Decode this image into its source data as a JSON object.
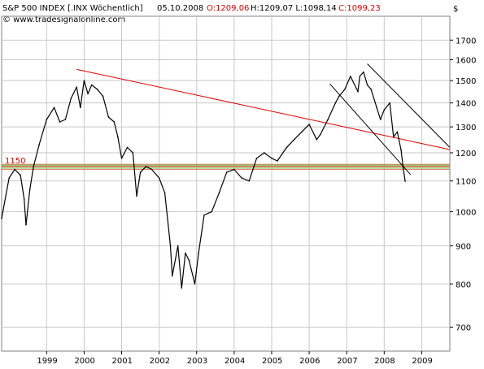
{
  "header": {
    "symbol": "S&P 500 INDEX [.INX Wöchentlich]",
    "date": "05.10.2008",
    "open_label": "O:1209,06",
    "hlc_label": "H:1209,07 L:1098,14",
    "close_label": "C:1099,23",
    "copyright": "© www.tradesignalonline.com",
    "currency": "$"
  },
  "colors": {
    "background": "#ffffff",
    "grid": "#c8c8c8",
    "price": "#000000",
    "red_line": "#e00000",
    "channel": "#000000",
    "band_green": "#7fbf5f",
    "band_red": "#e06040",
    "ohlc_red": "#d00000",
    "text": "#000000"
  },
  "chart_data": {
    "type": "line",
    "title": "",
    "xlabel": "",
    "ylabel": "$",
    "y_scale": "log",
    "ylim": [
      650,
      1830
    ],
    "xlim": [
      1998.0,
      2009.95
    ],
    "y_ticks": [
      700,
      800,
      900,
      1000,
      1100,
      1200,
      1300,
      1400,
      1500,
      1600,
      1700
    ],
    "x_ticks": [
      {
        "label": "1999",
        "value": 1999.2
      },
      {
        "label": "2000",
        "value": 2000.2
      },
      {
        "label": "2001",
        "value": 2001.2
      },
      {
        "label": "2002",
        "value": 2002.2
      },
      {
        "label": "2003",
        "value": 2003.2
      },
      {
        "label": "2004",
        "value": 2004.2
      },
      {
        "label": "2005",
        "value": 2005.2
      },
      {
        "label": "2006",
        "value": 2006.2
      },
      {
        "label": "2007",
        "value": 2007.2
      },
      {
        "label": "2008",
        "value": 2008.2
      },
      {
        "label": "2009",
        "value": 2009.2
      }
    ],
    "grid": true,
    "series": [
      {
        "x": [
          1998.0,
          1998.2,
          1998.35,
          1998.5,
          1998.6,
          1998.65,
          1998.75,
          1998.85,
          1999.0,
          1999.2,
          1999.4,
          1999.55,
          1999.7,
          1999.85,
          2000.0,
          2000.1,
          2000.2,
          2000.3,
          2000.4,
          2000.55,
          2000.7,
          2000.85,
          2001.0,
          2001.1,
          2001.2,
          2001.35,
          2001.5,
          2001.6,
          2001.7,
          2001.85,
          2002.0,
          2002.2,
          2002.35,
          2002.5,
          2002.55,
          2002.7,
          2002.8,
          2002.9,
          2003.0,
          2003.15,
          2003.25,
          2003.4,
          2003.6,
          2003.8,
          2004.0,
          2004.2,
          2004.4,
          2004.6,
          2004.8,
          2005.0,
          2005.2,
          2005.35,
          2005.6,
          2005.8,
          2006.0,
          2006.2,
          2006.4,
          2006.5,
          2006.7,
          2006.9,
          2007.0,
          2007.15,
          2007.3,
          2007.5,
          2007.55,
          2007.65,
          2007.75,
          2007.85,
          2008.0,
          2008.1,
          2008.2,
          2008.35,
          2008.45,
          2008.55,
          2008.65,
          2008.7,
          2008.76
        ],
        "values": [
          980,
          1110,
          1140,
          1120,
          1040,
          960,
          1070,
          1150,
          1230,
          1330,
          1380,
          1320,
          1330,
          1420,
          1470,
          1380,
          1500,
          1440,
          1480,
          1460,
          1430,
          1340,
          1320,
          1260,
          1180,
          1220,
          1200,
          1050,
          1130,
          1150,
          1140,
          1110,
          1060,
          900,
          820,
          900,
          790,
          880,
          860,
          800,
          880,
          990,
          1000,
          1060,
          1130,
          1140,
          1110,
          1100,
          1180,
          1200,
          1180,
          1170,
          1220,
          1250,
          1280,
          1310,
          1250,
          1270,
          1330,
          1400,
          1430,
          1460,
          1520,
          1450,
          1520,
          1540,
          1480,
          1460,
          1380,
          1330,
          1370,
          1400,
          1260,
          1280,
          1210,
          1150,
          1099
        ]
      }
    ],
    "trendline": {
      "x": [
        2000.0,
        2009.95
      ],
      "values": [
        1553,
        1212
      ]
    },
    "channel_upper": {
      "x": [
        2007.75,
        2009.95
      ],
      "values": [
        1580,
        1220
      ]
    },
    "channel_lower": {
      "x": [
        2006.75,
        2008.9
      ],
      "values": [
        1485,
        1122
      ]
    },
    "support_band": {
      "label": "1150",
      "upper": 1158,
      "mid": 1150,
      "lower": 1140
    }
  }
}
